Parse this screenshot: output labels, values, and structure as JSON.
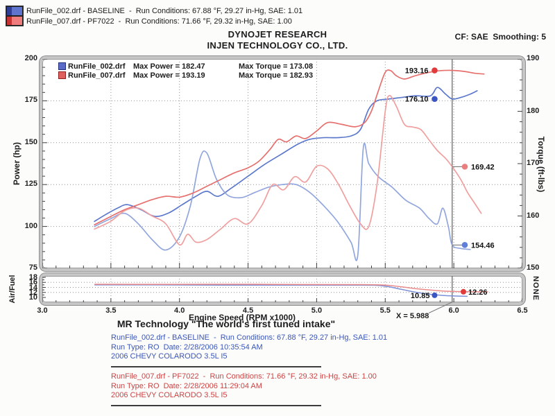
{
  "header": {
    "legend_lines": [
      "RunFile_002.drf - BASELINE  -  Run Conditions: 67.88 °F, 29.27 in-Hg, SAE: 1.01",
      "RunFile_007.drf - PF7022  -  Run Conditions: 71.66 °F, 29.32 in-Hg, SAE: 1.00"
    ],
    "brand_line1": "DYNOJET RESEARCH",
    "brand_line2": "INJEN TECHNOLOGY CO., LTD.",
    "cf_label": "CF: SAE  Smoothing: 5"
  },
  "chart_data": {
    "type": "line",
    "x_axis": {
      "label": "Engine Speed (RPM x1000)",
      "min": 3.0,
      "max": 6.5,
      "major_ticks": [
        "3.0",
        "3.5",
        "4.0",
        "4.5",
        "5.0",
        "5.5",
        "6.0",
        "6.5"
      ],
      "grid_values": [
        3.5,
        4.0,
        4.5,
        5.0,
        5.5,
        6.0
      ],
      "minor_step": 0.1
    },
    "power_axis": {
      "label": "Power (hp)",
      "min": 75,
      "max": 200,
      "ticks": [
        200,
        175,
        150,
        125,
        100,
        75
      ],
      "grid_values": [
        175,
        150,
        125,
        100
      ],
      "minor_step": 5
    },
    "torque_axis": {
      "label": "Torque (ft-lbs)",
      "min": 150,
      "max": 190,
      "ticks": [
        190,
        180,
        170,
        160,
        150
      ],
      "minor_step": 2
    },
    "af_axis": {
      "label": "Air/Fuel",
      "min": 10,
      "max": 18,
      "ticks": [
        18,
        16,
        14,
        12,
        10
      ],
      "grid_values": [
        16,
        14,
        12
      ],
      "right_label": "NONE"
    },
    "cursor_x": 5.988,
    "cursor_label": "X = 5.988",
    "legend": [
      {
        "file": "RunFile_002.drf",
        "max_power": 182.47,
        "max_torque": 173.08,
        "max_power_label": "Max Power = 182.47",
        "max_torque_label": "Max Torque = 173.08",
        "color": "#5b6cc8"
      },
      {
        "file": "RunFile_007.drf",
        "max_power": 193.19,
        "max_torque": 182.93,
        "max_power_label": "Max Power = 193.19",
        "max_torque_label": "Max Torque = 182.93",
        "color": "#e06060"
      }
    ],
    "series": [
      {
        "name": "baseline-power",
        "axis": "power",
        "color": "#5c78cc",
        "points": [
          [
            3.38,
            103
          ],
          [
            3.46,
            107
          ],
          [
            3.55,
            111
          ],
          [
            3.62,
            113
          ],
          [
            3.72,
            110
          ],
          [
            3.82,
            106
          ],
          [
            3.92,
            108
          ],
          [
            4.02,
            113
          ],
          [
            4.12,
            118
          ],
          [
            4.2,
            121
          ],
          [
            4.28,
            118
          ],
          [
            4.38,
            123
          ],
          [
            4.5,
            130
          ],
          [
            4.62,
            137
          ],
          [
            4.74,
            143
          ],
          [
            4.86,
            149
          ],
          [
            4.95,
            152
          ],
          [
            5.05,
            153
          ],
          [
            5.15,
            153
          ],
          [
            5.25,
            154
          ],
          [
            5.32,
            158
          ],
          [
            5.38,
            170
          ],
          [
            5.44,
            175
          ],
          [
            5.52,
            176
          ],
          [
            5.62,
            177
          ],
          [
            5.72,
            178
          ],
          [
            5.83,
            178
          ],
          [
            5.88,
            183
          ],
          [
            5.94,
            179
          ],
          [
            5.988,
            176.1
          ],
          [
            6.05,
            177
          ],
          [
            6.12,
            179
          ],
          [
            6.17,
            181
          ]
        ]
      },
      {
        "name": "baseline-torque",
        "axis": "torque",
        "color": "#92a6de",
        "points": [
          [
            3.38,
            158
          ],
          [
            3.5,
            159.5
          ],
          [
            3.6,
            160.5
          ],
          [
            3.7,
            158.5
          ],
          [
            3.8,
            155.5
          ],
          [
            3.9,
            153.5
          ],
          [
            4.0,
            156
          ],
          [
            4.08,
            162
          ],
          [
            4.15,
            171
          ],
          [
            4.2,
            172
          ],
          [
            4.27,
            167
          ],
          [
            4.35,
            164
          ],
          [
            4.45,
            163.5
          ],
          [
            4.55,
            164.5
          ],
          [
            4.65,
            165.5
          ],
          [
            4.75,
            166
          ],
          [
            4.85,
            166
          ],
          [
            4.95,
            164.5
          ],
          [
            5.05,
            162
          ],
          [
            5.15,
            159
          ],
          [
            5.25,
            155
          ],
          [
            5.3,
            152.5
          ],
          [
            5.34,
            173
          ],
          [
            5.38,
            170
          ],
          [
            5.45,
            167.5
          ],
          [
            5.55,
            165.5
          ],
          [
            5.65,
            163
          ],
          [
            5.75,
            161.5
          ],
          [
            5.82,
            159.5
          ],
          [
            5.88,
            158.5
          ],
          [
            5.92,
            161.5
          ],
          [
            5.96,
            158
          ],
          [
            5.988,
            154.46
          ],
          [
            6.05,
            153.8
          ],
          [
            6.12,
            153.6
          ]
        ]
      },
      {
        "name": "pf7022-power",
        "axis": "power",
        "color": "#e5706e",
        "points": [
          [
            3.38,
            101
          ],
          [
            3.5,
            106
          ],
          [
            3.6,
            110
          ],
          [
            3.7,
            113
          ],
          [
            3.8,
            116
          ],
          [
            3.9,
            118
          ],
          [
            4.0,
            117.5
          ],
          [
            4.1,
            120
          ],
          [
            4.2,
            124
          ],
          [
            4.3,
            128
          ],
          [
            4.4,
            132
          ],
          [
            4.5,
            135
          ],
          [
            4.58,
            139
          ],
          [
            4.66,
            146
          ],
          [
            4.72,
            152
          ],
          [
            4.78,
            150.5
          ],
          [
            4.85,
            154
          ],
          [
            4.92,
            152.5
          ],
          [
            5.0,
            157
          ],
          [
            5.08,
            162
          ],
          [
            5.18,
            161
          ],
          [
            5.28,
            159.5
          ],
          [
            5.35,
            162
          ],
          [
            5.4,
            169
          ],
          [
            5.45,
            181
          ],
          [
            5.5,
            192
          ],
          [
            5.54,
            193
          ],
          [
            5.58,
            190
          ],
          [
            5.64,
            188
          ],
          [
            5.72,
            190
          ],
          [
            5.82,
            192
          ],
          [
            5.9,
            193
          ],
          [
            5.988,
            193.16
          ],
          [
            6.08,
            192.5
          ],
          [
            6.15,
            191.5
          ],
          [
            6.22,
            191
          ]
        ]
      },
      {
        "name": "pf7022-torque",
        "axis": "torque",
        "color": "#f09f9f",
        "points": [
          [
            3.38,
            157.5
          ],
          [
            3.5,
            159
          ],
          [
            3.6,
            161
          ],
          [
            3.7,
            161.5
          ],
          [
            3.8,
            160
          ],
          [
            3.9,
            158.5
          ],
          [
            4.0,
            154.5
          ],
          [
            4.06,
            156.5
          ],
          [
            4.12,
            155
          ],
          [
            4.2,
            155.5
          ],
          [
            4.3,
            157.5
          ],
          [
            4.4,
            159.5
          ],
          [
            4.5,
            158.5
          ],
          [
            4.6,
            162
          ],
          [
            4.68,
            166
          ],
          [
            4.76,
            165
          ],
          [
            4.84,
            167.5
          ],
          [
            4.92,
            166.5
          ],
          [
            5.0,
            169.5
          ],
          [
            5.08,
            169
          ],
          [
            5.16,
            166
          ],
          [
            5.24,
            162
          ],
          [
            5.32,
            158.5
          ],
          [
            5.38,
            158
          ],
          [
            5.44,
            166
          ],
          [
            5.5,
            180
          ],
          [
            5.53,
            183
          ],
          [
            5.58,
            181
          ],
          [
            5.64,
            177.5
          ],
          [
            5.7,
            177
          ],
          [
            5.76,
            176.5
          ],
          [
            5.82,
            174.5
          ],
          [
            5.88,
            172.5
          ],
          [
            5.94,
            171
          ],
          [
            5.988,
            169.42
          ],
          [
            6.05,
            167
          ],
          [
            6.1,
            164.5
          ],
          [
            6.15,
            162.5
          ],
          [
            6.2,
            160.5
          ]
        ]
      },
      {
        "name": "baseline-af",
        "axis": "af",
        "color": "#7b90d6",
        "points": [
          [
            3.38,
            15.0
          ],
          [
            3.8,
            15.0
          ],
          [
            4.3,
            14.9
          ],
          [
            4.8,
            14.9
          ],
          [
            5.2,
            14.9
          ],
          [
            5.42,
            14.85
          ],
          [
            5.52,
            14.3
          ],
          [
            5.62,
            13.2
          ],
          [
            5.72,
            12.1
          ],
          [
            5.82,
            11.3
          ],
          [
            5.92,
            10.8
          ],
          [
            6.0,
            10.6
          ],
          [
            6.1,
            10.45
          ]
        ]
      },
      {
        "name": "pf7022-af",
        "axis": "af",
        "color": "#ea8a8a",
        "points": [
          [
            3.38,
            15.25
          ],
          [
            3.9,
            15.2
          ],
          [
            4.4,
            15.25
          ],
          [
            4.9,
            15.15
          ],
          [
            5.3,
            15.1
          ],
          [
            5.5,
            14.9
          ],
          [
            5.62,
            14.2
          ],
          [
            5.74,
            13.4
          ],
          [
            5.86,
            12.8
          ],
          [
            5.96,
            12.45
          ],
          [
            6.05,
            12.3
          ],
          [
            6.15,
            12.25
          ],
          [
            6.25,
            12.25
          ]
        ]
      }
    ],
    "callouts": [
      {
        "label": "193.16",
        "rpm": 5.86,
        "value": 193.16,
        "axis": "power",
        "color": "#e03a3a",
        "label_side": "left",
        "leader": false
      },
      {
        "label": "176.10",
        "rpm": 5.86,
        "value": 176.1,
        "axis": "power",
        "color": "#3a55c4",
        "label_side": "left",
        "leader": false
      },
      {
        "label": "169.42",
        "rpm": 6.08,
        "value": 169.42,
        "axis": "torque",
        "color": "#e87e7e",
        "label_side": "right",
        "leader": true
      },
      {
        "label": "154.46",
        "rpm": 6.08,
        "value": 154.46,
        "axis": "torque",
        "color": "#5f7fd8",
        "label_side": "right",
        "leader": true
      },
      {
        "label": "10.85",
        "rpm": 5.86,
        "value": 10.85,
        "axis": "af",
        "color": "#3a55c4",
        "label_side": "left",
        "leader": false
      },
      {
        "label": "12.26",
        "rpm": 6.07,
        "value": 12.26,
        "axis": "af",
        "color": "#e03a3a",
        "label_side": "right",
        "leader": false
      }
    ]
  },
  "footer": {
    "tagline": "MR Technology \"The world's first tuned intake\"",
    "baseline_block": [
      "RunFile_002.drf - BASELINE  -  Run Conditions: 67.88 °F, 29.27 in-Hg, SAE: 1.01",
      "Run Type: RO  Date: 2/28/2006 10:35:54 AM",
      "2006 CHEVY COLARODO 3.5L I5"
    ],
    "pf7022_block": [
      "RunFile_007.drf - PF7022  -  Run Conditions: 71.66 °F, 29.32 in-Hg, SAE: 1.00",
      "Run Type: RO  Date: 2/28/2006 11:29:04 AM",
      "2006 CHEVY COLARODO 3.5L I5"
    ]
  }
}
